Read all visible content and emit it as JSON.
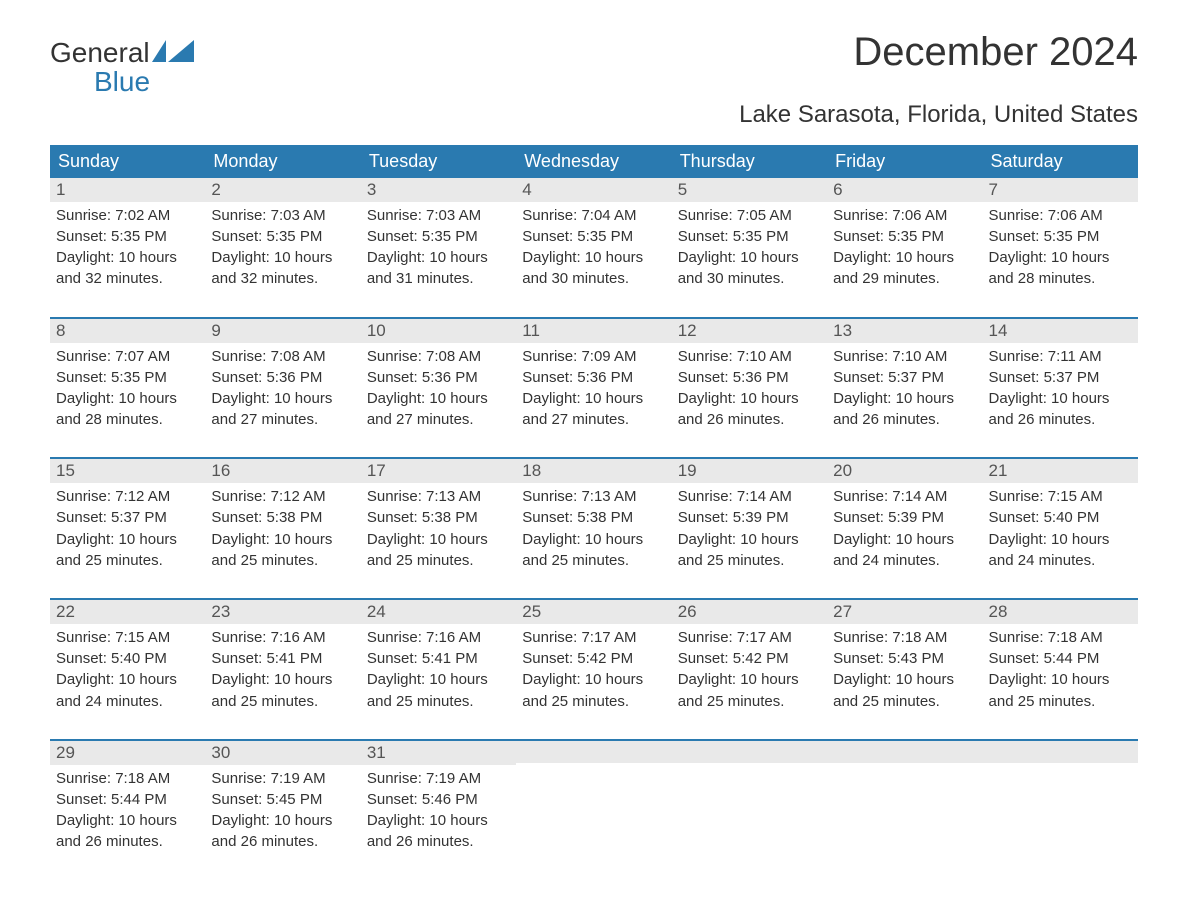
{
  "logo": {
    "line1": "General",
    "line2": "Blue"
  },
  "title": "December 2024",
  "location": "Lake Sarasota, Florida, United States",
  "colors": {
    "header_bg": "#2a7ab0",
    "header_text": "#ffffff",
    "daynum_bg": "#e9e9e9",
    "page_bg": "#ffffff",
    "text": "#333333",
    "logo_blue": "#2a7ab0"
  },
  "typography": {
    "title_fontsize": 40,
    "location_fontsize": 24,
    "dow_fontsize": 18,
    "day_text_fontsize": 15,
    "logo_fontsize": 28
  },
  "days_of_week": [
    "Sunday",
    "Monday",
    "Tuesday",
    "Wednesday",
    "Thursday",
    "Friday",
    "Saturday"
  ],
  "labels": {
    "sunrise_prefix": "Sunrise: ",
    "sunset_prefix": "Sunset: ",
    "daylight_prefix": "Daylight: ",
    "daylight_join": " and ",
    "hours_word": " hours",
    "minutes_word": " minutes."
  },
  "weeks": [
    [
      {
        "n": "1",
        "sunrise": "7:02 AM",
        "sunset": "5:35 PM",
        "dl_h": "10",
        "dl_m": "32"
      },
      {
        "n": "2",
        "sunrise": "7:03 AM",
        "sunset": "5:35 PM",
        "dl_h": "10",
        "dl_m": "32"
      },
      {
        "n": "3",
        "sunrise": "7:03 AM",
        "sunset": "5:35 PM",
        "dl_h": "10",
        "dl_m": "31"
      },
      {
        "n": "4",
        "sunrise": "7:04 AM",
        "sunset": "5:35 PM",
        "dl_h": "10",
        "dl_m": "30"
      },
      {
        "n": "5",
        "sunrise": "7:05 AM",
        "sunset": "5:35 PM",
        "dl_h": "10",
        "dl_m": "30"
      },
      {
        "n": "6",
        "sunrise": "7:06 AM",
        "sunset": "5:35 PM",
        "dl_h": "10",
        "dl_m": "29"
      },
      {
        "n": "7",
        "sunrise": "7:06 AM",
        "sunset": "5:35 PM",
        "dl_h": "10",
        "dl_m": "28"
      }
    ],
    [
      {
        "n": "8",
        "sunrise": "7:07 AM",
        "sunset": "5:35 PM",
        "dl_h": "10",
        "dl_m": "28"
      },
      {
        "n": "9",
        "sunrise": "7:08 AM",
        "sunset": "5:36 PM",
        "dl_h": "10",
        "dl_m": "27"
      },
      {
        "n": "10",
        "sunrise": "7:08 AM",
        "sunset": "5:36 PM",
        "dl_h": "10",
        "dl_m": "27"
      },
      {
        "n": "11",
        "sunrise": "7:09 AM",
        "sunset": "5:36 PM",
        "dl_h": "10",
        "dl_m": "27"
      },
      {
        "n": "12",
        "sunrise": "7:10 AM",
        "sunset": "5:36 PM",
        "dl_h": "10",
        "dl_m": "26"
      },
      {
        "n": "13",
        "sunrise": "7:10 AM",
        "sunset": "5:37 PM",
        "dl_h": "10",
        "dl_m": "26"
      },
      {
        "n": "14",
        "sunrise": "7:11 AM",
        "sunset": "5:37 PM",
        "dl_h": "10",
        "dl_m": "26"
      }
    ],
    [
      {
        "n": "15",
        "sunrise": "7:12 AM",
        "sunset": "5:37 PM",
        "dl_h": "10",
        "dl_m": "25"
      },
      {
        "n": "16",
        "sunrise": "7:12 AM",
        "sunset": "5:38 PM",
        "dl_h": "10",
        "dl_m": "25"
      },
      {
        "n": "17",
        "sunrise": "7:13 AM",
        "sunset": "5:38 PM",
        "dl_h": "10",
        "dl_m": "25"
      },
      {
        "n": "18",
        "sunrise": "7:13 AM",
        "sunset": "5:38 PM",
        "dl_h": "10",
        "dl_m": "25"
      },
      {
        "n": "19",
        "sunrise": "7:14 AM",
        "sunset": "5:39 PM",
        "dl_h": "10",
        "dl_m": "25"
      },
      {
        "n": "20",
        "sunrise": "7:14 AM",
        "sunset": "5:39 PM",
        "dl_h": "10",
        "dl_m": "24"
      },
      {
        "n": "21",
        "sunrise": "7:15 AM",
        "sunset": "5:40 PM",
        "dl_h": "10",
        "dl_m": "24"
      }
    ],
    [
      {
        "n": "22",
        "sunrise": "7:15 AM",
        "sunset": "5:40 PM",
        "dl_h": "10",
        "dl_m": "24"
      },
      {
        "n": "23",
        "sunrise": "7:16 AM",
        "sunset": "5:41 PM",
        "dl_h": "10",
        "dl_m": "25"
      },
      {
        "n": "24",
        "sunrise": "7:16 AM",
        "sunset": "5:41 PM",
        "dl_h": "10",
        "dl_m": "25"
      },
      {
        "n": "25",
        "sunrise": "7:17 AM",
        "sunset": "5:42 PM",
        "dl_h": "10",
        "dl_m": "25"
      },
      {
        "n": "26",
        "sunrise": "7:17 AM",
        "sunset": "5:42 PM",
        "dl_h": "10",
        "dl_m": "25"
      },
      {
        "n": "27",
        "sunrise": "7:18 AM",
        "sunset": "5:43 PM",
        "dl_h": "10",
        "dl_m": "25"
      },
      {
        "n": "28",
        "sunrise": "7:18 AM",
        "sunset": "5:44 PM",
        "dl_h": "10",
        "dl_m": "25"
      }
    ],
    [
      {
        "n": "29",
        "sunrise": "7:18 AM",
        "sunset": "5:44 PM",
        "dl_h": "10",
        "dl_m": "26"
      },
      {
        "n": "30",
        "sunrise": "7:19 AM",
        "sunset": "5:45 PM",
        "dl_h": "10",
        "dl_m": "26"
      },
      {
        "n": "31",
        "sunrise": "7:19 AM",
        "sunset": "5:46 PM",
        "dl_h": "10",
        "dl_m": "26"
      },
      {
        "empty": true
      },
      {
        "empty": true
      },
      {
        "empty": true
      },
      {
        "empty": true
      }
    ]
  ]
}
